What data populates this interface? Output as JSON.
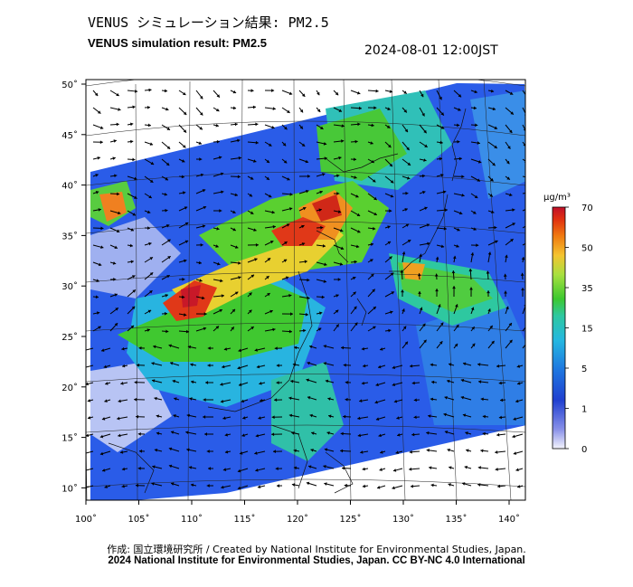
{
  "title_jp": "VENUS シミュレーション結果: PM2.5",
  "title_en": "VENUS simulation result: PM2.5",
  "datetime": "2024-08-01 12:00JST",
  "colorbar": {
    "unit": "μg/m³",
    "ticks": [
      "70",
      "50",
      "35",
      "15",
      "5",
      "1",
      "0"
    ],
    "colors": [
      "#c0102a",
      "#e03010",
      "#f07a10",
      "#f4c430",
      "#a8e040",
      "#3cc830",
      "#2ec8a0",
      "#25b8e0",
      "#1e78e0",
      "#2040d0",
      "#8890e8",
      "#f4f4fc"
    ]
  },
  "map": {
    "lon_labels": [
      "100˚",
      "105˚",
      "110˚",
      "115˚",
      "120˚",
      "125˚",
      "130˚",
      "135˚",
      "140˚"
    ],
    "lat_labels": [
      "50˚",
      "45˚",
      "40˚",
      "35˚",
      "30˚",
      "25˚",
      "20˚",
      "15˚",
      "10˚"
    ]
  },
  "credit_line1": "作成: 国立環境研究所 / Created by National Institute for Environmental Studies, Japan.",
  "credit_line2": "2024 National Institute for Environmental Studies, Japan. CC BY-NC 4.0 International"
}
